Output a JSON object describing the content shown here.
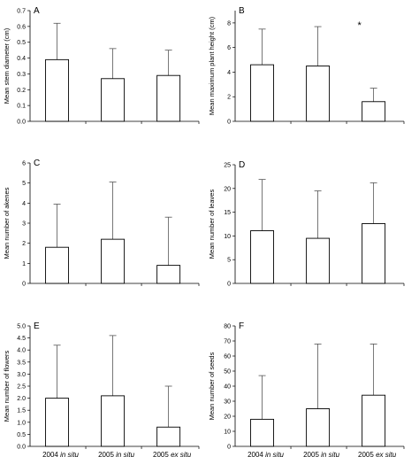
{
  "chart_data": [
    {
      "panel": "A",
      "type": "bar",
      "categories": [
        "2004 in situ",
        "2005 in situ",
        "2005 ex situ"
      ],
      "values": [
        0.39,
        0.27,
        0.29
      ],
      "errors": [
        0.23,
        0.19,
        0.16
      ],
      "ylabel": "Mean stem diameter (cm)",
      "ylim": [
        0,
        0.7
      ],
      "yticks": [
        "0.0",
        "0.1",
        "0.2",
        "0.3",
        "0.4",
        "0.5",
        "0.6",
        "0.7"
      ],
      "significance": []
    },
    {
      "panel": "B",
      "type": "bar",
      "categories": [
        "2004 in situ",
        "2005 in situ",
        "2005 ex situ"
      ],
      "values": [
        4.6,
        4.5,
        1.6
      ],
      "errors": [
        2.9,
        3.2,
        1.1
      ],
      "ylabel": "Mean maximum plant height (cm)",
      "ylim": [
        0,
        9
      ],
      "yticks": [
        "0",
        "2",
        "4",
        "6",
        "8"
      ],
      "significance": [
        "",
        "",
        "*"
      ]
    },
    {
      "panel": "C",
      "type": "bar",
      "categories": [
        "2004 in situ",
        "2005 in situ",
        "2005 ex situ"
      ],
      "values": [
        1.8,
        2.2,
        0.9
      ],
      "errors": [
        2.15,
        2.85,
        2.4
      ],
      "ylabel": "Mean number of akenes",
      "ylim": [
        0,
        6
      ],
      "yticks": [
        "0",
        "1",
        "2",
        "3",
        "4",
        "5",
        "6"
      ],
      "significance": []
    },
    {
      "panel": "D",
      "type": "bar",
      "categories": [
        "2004 in situ",
        "2005 in situ",
        "2005 ex situ"
      ],
      "values": [
        11.1,
        9.5,
        12.6
      ],
      "errors": [
        10.8,
        10.0,
        8.6
      ],
      "ylabel": "Mean number of leaves",
      "ylim": [
        0,
        25
      ],
      "yticks": [
        "0",
        "5",
        "10",
        "15",
        "20",
        "25"
      ],
      "significance": []
    },
    {
      "panel": "E",
      "type": "bar",
      "categories": [
        "2004 in situ",
        "2005 in situ",
        "2005 ex situ"
      ],
      "values": [
        2.0,
        2.1,
        0.8
      ],
      "errors": [
        2.2,
        2.5,
        1.7
      ],
      "ylabel": "Mean number of flowers",
      "ylim": [
        0,
        5
      ],
      "yticks": [
        "0.0",
        "0.5",
        "1.0",
        "1.5",
        "2.0",
        "2.5",
        "3.0",
        "3.5",
        "4.0",
        "4.5",
        "5.0"
      ],
      "significance": []
    },
    {
      "panel": "F",
      "type": "bar",
      "categories": [
        "2004 in situ",
        "2005 in situ",
        "2005 ex situ"
      ],
      "values": [
        18,
        25,
        34
      ],
      "errors": [
        29,
        43,
        34
      ],
      "ylabel": "Mean number of seeds",
      "ylim": [
        0,
        80
      ],
      "yticks": [
        "0",
        "10",
        "20",
        "30",
        "40",
        "50",
        "60",
        "70",
        "80"
      ],
      "significance": []
    }
  ],
  "x_labels": [
    {
      "year": "2004",
      "site": "in situ"
    },
    {
      "year": "2005",
      "site": "in situ"
    },
    {
      "year": "2005",
      "site": "ex situ"
    }
  ],
  "colors": {
    "bar_fill": "#ffffff",
    "stroke": "#000000"
  }
}
